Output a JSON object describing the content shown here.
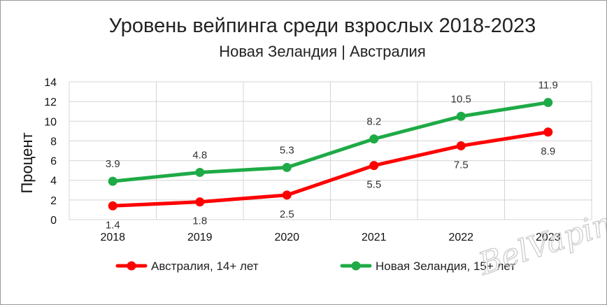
{
  "chart_data": {
    "type": "line",
    "title": "Уровень вейпинга среди взрослых 2018-2023",
    "subtitle": "Новая Зеландия | Австралия",
    "xlabel": "",
    "ylabel": "Процент",
    "categories": [
      "2018",
      "2019",
      "2020",
      "2021",
      "2022",
      "2023"
    ],
    "ylim": [
      0,
      14
    ],
    "yticks": [
      0,
      2,
      4,
      6,
      8,
      10,
      12,
      14
    ],
    "grid": true,
    "legend_position": "bottom",
    "series": [
      {
        "name": "Австралия, 14+ лет",
        "color": "#ff0000",
        "values": [
          1.4,
          1.8,
          2.5,
          5.5,
          7.5,
          8.9
        ],
        "labels": [
          "1.4",
          "1.8",
          "2.5",
          "5.5",
          "7.5",
          "8.9"
        ],
        "label_position": "below"
      },
      {
        "name": "Новая Зеландия, 15+ лет",
        "color": "#1eaa46",
        "values": [
          3.9,
          4.8,
          5.3,
          8.2,
          10.5,
          11.9
        ],
        "labels": [
          "3.9",
          "4.8",
          "5.3",
          "8.2",
          "10.5",
          "11.9"
        ],
        "label_position": "above"
      }
    ]
  },
  "watermark": "BelVaping"
}
